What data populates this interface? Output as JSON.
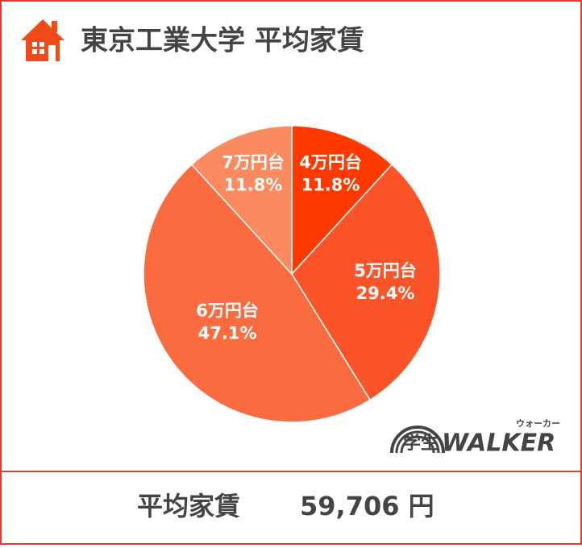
{
  "chart_data": {
    "type": "pie",
    "title": "東京工業大学 平均家賃",
    "categories": [
      "4万円台",
      "5万円台",
      "6万円台",
      "7万円台"
    ],
    "values": [
      11.8,
      29.4,
      47.1,
      11.8
    ],
    "value_labels": [
      "11.8%",
      "29.4%",
      "47.1%",
      "11.8%"
    ],
    "colors": [
      "#ff3a00",
      "#fa5428",
      "#fb6b40",
      "#fb8a60"
    ]
  },
  "logo": {
    "main": "学生",
    "brand": "WALKER",
    "reading": "ウォーカー"
  },
  "footer": {
    "label": "平均家賃",
    "value": "59,706 円"
  }
}
